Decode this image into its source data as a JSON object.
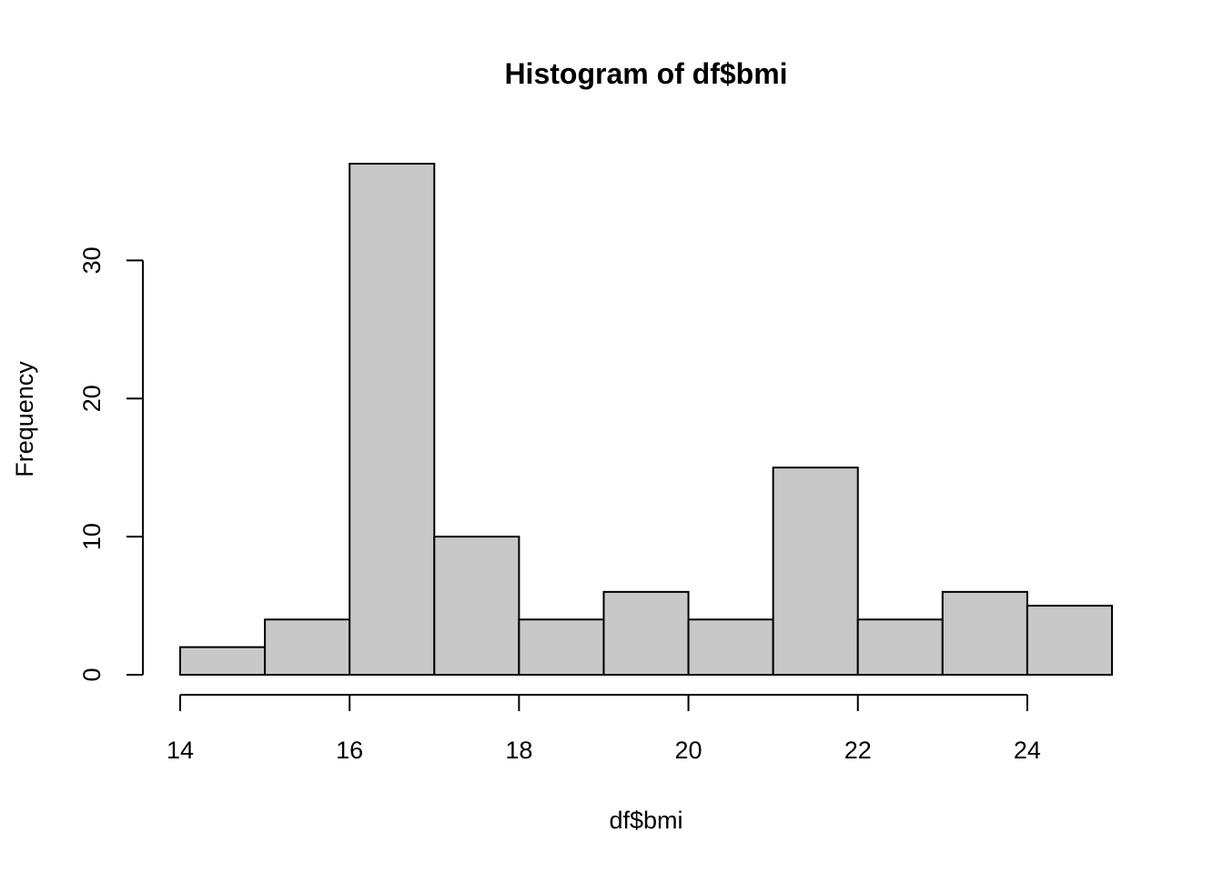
{
  "chart_data": {
    "type": "bar",
    "subtype": "histogram",
    "title": "Histogram of df$bmi",
    "xlabel": "df$bmi",
    "ylabel": "Frequency",
    "bin_edges": [
      14,
      15,
      16,
      17,
      18,
      19,
      20,
      21,
      22,
      23,
      24,
      25
    ],
    "values": [
      2,
      4,
      37,
      10,
      4,
      6,
      4,
      15,
      4,
      6,
      5
    ],
    "xlim": [
      14,
      25
    ],
    "ylim": [
      0,
      37
    ],
    "x_ticks": [
      14,
      16,
      18,
      20,
      22,
      24
    ],
    "x_tick_labels": [
      "14",
      "16",
      "18",
      "20",
      "22",
      "24"
    ],
    "y_ticks": [
      0,
      10,
      20,
      30
    ],
    "y_tick_labels": [
      "0",
      "10",
      "20",
      "30"
    ],
    "grid": false,
    "legend": "none",
    "bar_fill": "#c8c8c8",
    "bar_stroke": "#000000",
    "background": "#ffffff"
  }
}
